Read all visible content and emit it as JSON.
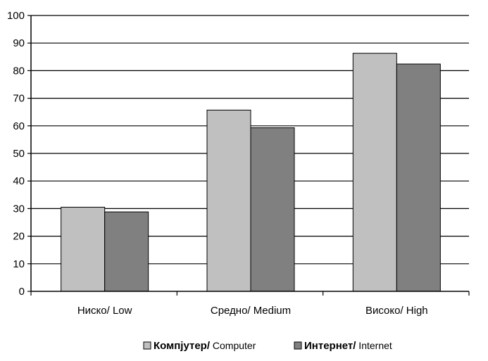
{
  "chart_data": {
    "type": "bar",
    "categories": [
      "Ниско/ Low",
      "Средно/ Medium",
      "Високо/ High"
    ],
    "series": [
      {
        "name_main": "Компјутер/",
        "name_sub": "Computer",
        "values": [
          30.5,
          65.7,
          86.3
        ],
        "color": "#c0c0c0"
      },
      {
        "name_main": "Интернет/",
        "name_sub": "Internet",
        "values": [
          28.8,
          59.3,
          82.4
        ],
        "color": "#808080"
      }
    ],
    "ylim": [
      0,
      100
    ],
    "yticks": [
      0,
      10,
      20,
      30,
      40,
      50,
      60,
      70,
      80,
      90,
      100
    ],
    "grid": true,
    "legend_position": "bottom",
    "title": "",
    "xlabel": "",
    "ylabel": ""
  }
}
